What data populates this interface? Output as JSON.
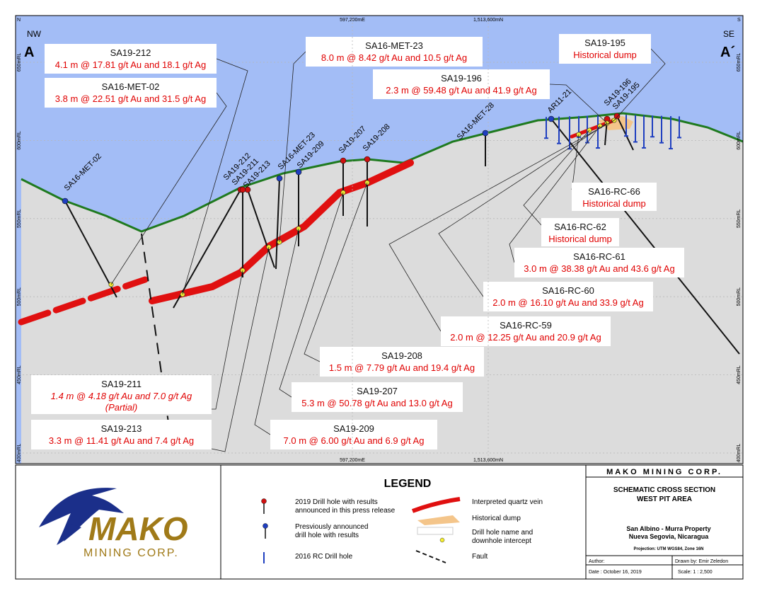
{
  "frame": {
    "corner_n": "N",
    "corner_s": "S",
    "easting": "597,200mE",
    "northing": "1,513,600mN",
    "elevations": [
      "650mRL",
      "600mRL",
      "550mRL",
      "500mRL",
      "450mRL",
      "400mRL"
    ],
    "west_dir": "NW",
    "west_end": "A",
    "east_dir": "SE",
    "east_end": "A´"
  },
  "collar_labels": [
    "SA16-MET-02",
    "SA19-212",
    "SA19-211",
    "SA19-213",
    "SA16-MET-23",
    "SA19-209",
    "SA19-207",
    "SA19-208",
    "SA16-MET-28",
    "AR11-21",
    "SA19-196",
    "SA19-195"
  ],
  "callouts": [
    {
      "title": "SA19-212",
      "lines": [
        "4.1 m @ 17.81 g/t Au and 18.1 g/t Ag"
      ]
    },
    {
      "title": "SA16-MET-02",
      "lines": [
        "3.8 m @ 22.51 g/t Au and 31.5 g/t Ag"
      ]
    },
    {
      "title": "SA16-MET-23",
      "lines": [
        "8.0 m @ 8.42 g/t Au and 10.5 g/t Ag"
      ]
    },
    {
      "title": "SA19-196",
      "lines": [
        "2.3 m @ 59.48 g/t Au and 41.9 g/t Ag"
      ]
    },
    {
      "title": "SA19-195",
      "lines": [
        "Historical dump"
      ]
    },
    {
      "title": "SA16-RC-66",
      "lines": [
        "Historical dump"
      ]
    },
    {
      "title": "SA16-RC-62",
      "lines": [
        "Historical dump"
      ]
    },
    {
      "title": "SA16-RC-61",
      "lines": [
        "3.0 m @ 38.38 g/t Au and 43.6 g/t Ag"
      ]
    },
    {
      "title": "SA16-RC-60",
      "lines": [
        "2.0 m @ 16.10 g/t Au and 33.9 g/t Ag"
      ]
    },
    {
      "title": "SA16-RC-59",
      "lines": [
        "2.0 m @ 12.25 g/t Au and 20.9 g/t Ag"
      ]
    },
    {
      "title": "SA19-208",
      "lines": [
        "1.5 m @ 7.79 g/t Au and 19.4 g/t Ag"
      ]
    },
    {
      "title": "SA19-207",
      "lines": [
        "5.3 m @ 50.78 g/t Au and 13.0 g/t Ag"
      ]
    },
    {
      "title": "SA19-209",
      "lines": [
        "7.0 m @ 6.00 g/t Au and 6.9 g/t Ag"
      ]
    },
    {
      "title": "SA19-211",
      "lines": [
        "1.4 m @ 4.18 g/t Au and 7.0 g/t Ag",
        "(Partial)"
      ],
      "italic": true
    },
    {
      "title": "SA19-213",
      "lines": [
        "3.3 m @ 11.41 g/t Au and 7.4 g/t Ag"
      ]
    }
  ],
  "legend": {
    "title": "LEGEND",
    "new_hole": [
      "2019 Drill hole with results",
      "announced in this press release"
    ],
    "old_hole": [
      "Presviously announced",
      "drill hole with results"
    ],
    "rc_hole": "2016 RC Drill hole",
    "vein": "Interpreted quartz vein",
    "dump": "Historical dump",
    "intercept": [
      "Drill hole name and",
      "downhole intercept"
    ],
    "fault": "Fault"
  },
  "title_block": {
    "company": "MAKO MINING CORP.",
    "title": [
      "SCHEMATIC CROSS SECTION",
      "WEST PIT AREA"
    ],
    "property": [
      "San Albino - Murra  Property",
      "Nueva Segovia, Nicaragua"
    ],
    "projection": "Projection: UTM WGS84, Zone 16N",
    "author": "Author:",
    "drawn_by": "Drawn by: Emir Zeledon",
    "date": "Date : October 16, 2019",
    "scale": "Scale: 1 : 2,500"
  },
  "logo": {
    "name": "MAKO",
    "sub": "MINING CORP."
  }
}
